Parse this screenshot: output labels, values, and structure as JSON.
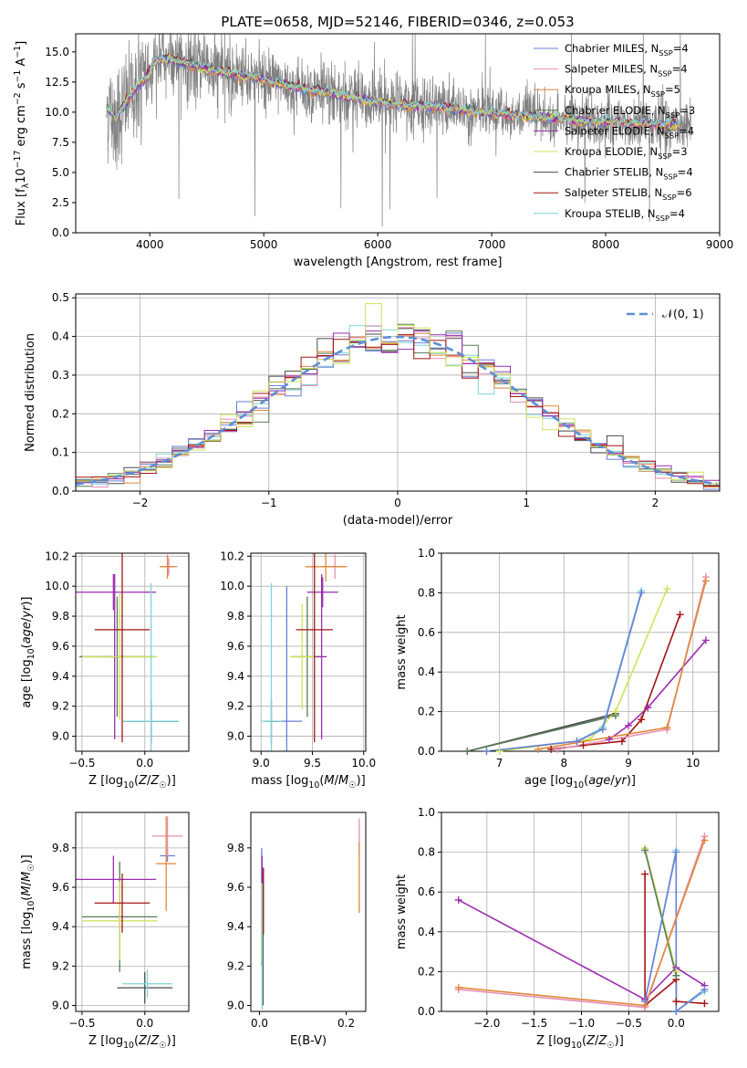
{
  "title": "PLATE=0658, MJD=52146, FIBERID=0346, z=0.053",
  "series_names": [
    "Chabrier MILES, N<sub>SSP</sub>=4",
    "Salpeter MILES, N<sub>SSP</sub>=4",
    "Kroupa MILES, N<sub>SSP</sub>=5",
    "Chabrier ELODIE, N<sub>SSP</sub>=3",
    "Salpeter ELODIE, N<sub>SSP</sub>=4",
    "Kroupa ELODIE, N<sub>SSP</sub>=3",
    "Chabrier STELIB, N<sub>SSP</sub>=4",
    "Salpeter STELIB, N<sub>SSP</sub>=6",
    "Kroupa STELIB, N<sub>SSP</sub>=4"
  ],
  "series_colors": [
    "#6b7fd6",
    "#e68fb8",
    "#e0883a",
    "#5a7a5a",
    "#9b2cb0",
    "#cde35a",
    "#4a4a4a",
    "#a41414",
    "#7fd4d8"
  ],
  "chart_data": [
    {
      "id": "spectrum",
      "type": "line",
      "xlabel": "wavelength [Angstrom, rest frame]",
      "ylabel": "Flux [f<sub>λ</sub>10<sup>−17</sup> erg cm<sup>−2</sup> s<sup>−1</sup> A<sup>−1</sup>]",
      "xlim": [
        3350,
        9000
      ],
      "ylim": [
        0,
        16.5
      ],
      "xticks": [
        4000,
        5000,
        6000,
        7000,
        8000,
        9000
      ],
      "yticks": [
        0.0,
        2.5,
        5.0,
        7.5,
        10.0,
        12.5,
        15.0
      ],
      "grid": false,
      "legend": "top-right",
      "data_range": [
        3620,
        8750
      ],
      "continuum": [
        [
          3620,
          10.5
        ],
        [
          3700,
          9.5
        ],
        [
          3800,
          11.0
        ],
        [
          3900,
          12.3
        ],
        [
          3950,
          12.5
        ],
        [
          4050,
          14.3
        ],
        [
          4150,
          14.5
        ],
        [
          4300,
          14.0
        ],
        [
          4500,
          13.6
        ],
        [
          4700,
          13.2
        ],
        [
          4900,
          12.9
        ],
        [
          5100,
          12.4
        ],
        [
          5300,
          12.0
        ],
        [
          5500,
          11.7
        ],
        [
          5700,
          11.3
        ],
        [
          5900,
          11.0
        ],
        [
          6100,
          10.7
        ],
        [
          6300,
          10.5
        ],
        [
          6500,
          10.4
        ],
        [
          6700,
          10.2
        ],
        [
          6900,
          10.0
        ],
        [
          7100,
          9.85
        ],
        [
          7300,
          9.7
        ],
        [
          7500,
          9.5
        ],
        [
          7700,
          9.3
        ],
        [
          7900,
          9.2
        ],
        [
          8100,
          9.1
        ],
        [
          8300,
          9.05
        ],
        [
          8500,
          9.0
        ],
        [
          8750,
          8.9
        ]
      ],
      "observed_noise_amplitude": 1.4
    },
    {
      "id": "residuals",
      "type": "histogram",
      "xlabel": "(data-model)/error",
      "ylabel": "Normed distribution",
      "xlim": [
        -2.5,
        2.5
      ],
      "ylim": [
        0,
        0.51
      ],
      "xticks": [
        -2,
        -1,
        0,
        1,
        2
      ],
      "yticks": [
        0.0,
        0.1,
        0.2,
        0.3,
        0.4,
        0.5
      ],
      "grid": true,
      "legend": "top-right",
      "reference_label": "𝒩(0, 1)",
      "bins": 40,
      "spike": {
        "bin_center": -0.16,
        "value": 0.485
      }
    },
    {
      "id": "age_vs_Z",
      "type": "errorbar",
      "xlabel": "Z [log<sub>10</sub>(<i>Z</i>/<i>Z</i><sub>☉</sub>)]",
      "ylabel": "age  [log<sub>10</sub>(<i>age</i>/<i>yr</i>)]",
      "xlim": [
        -0.55,
        0.35
      ],
      "ylim": [
        8.9,
        10.22
      ],
      "xticks": [
        -0.5,
        0.0
      ],
      "yticks": [
        9.0,
        9.2,
        9.4,
        9.6,
        9.8,
        10.0,
        10.2
      ],
      "grid": true,
      "points": [
        {
          "series": 0,
          "x": 0.05,
          "y": 9.1,
          "xerr": 0.22,
          "yerr": 0.15
        },
        {
          "series": 0,
          "x": 0.19,
          "y": 10.13,
          "xerr": 0.06,
          "yerr": 0.05
        },
        {
          "series": 1,
          "x": 0.19,
          "y": 10.13,
          "xerr": 0.07,
          "yerr": 0.06
        },
        {
          "series": 2,
          "x": 0.18,
          "y": 10.13,
          "xerr": 0.06,
          "yerr": 0.08
        },
        {
          "series": 3,
          "x": -0.22,
          "y": 9.53,
          "xerr": 0.3,
          "yerr": 0.4
        },
        {
          "series": 4,
          "x": -0.25,
          "y": 9.96,
          "xerr": 0.34,
          "yerr": 0.12
        },
        {
          "series": 4,
          "x": -0.24,
          "y": 9.53,
          "xerr": 0.1,
          "yerr": 0.55
        },
        {
          "series": 5,
          "x": -0.2,
          "y": 9.53,
          "xerr": 0.3,
          "yerr": 0.42
        },
        {
          "series": 6,
          "x": 0.05,
          "y": 9.1,
          "xerr": 0.22,
          "yerr": 0.14
        },
        {
          "series": 7,
          "x": -0.18,
          "y": 9.71,
          "xerr": 0.22,
          "yerr": 0.75
        },
        {
          "series": 8,
          "x": 0.05,
          "y": 9.1,
          "xerr": 0.22,
          "yerr": 0.92
        }
      ]
    },
    {
      "id": "age_vs_mass",
      "type": "errorbar",
      "xlabel": "mass [log<sub>10</sub>(<i>M</i>/<i>M</i><sub>☉</sub>)]",
      "ylabel": "",
      "xlim": [
        8.9,
        10.02
      ],
      "ylim": [
        8.9,
        10.22
      ],
      "xticks": [
        9.0,
        9.5,
        10.0
      ],
      "yticks": [
        9.0,
        9.2,
        9.4,
        9.6,
        9.8,
        10.0,
        10.2
      ],
      "grid": true,
      "points": [
        {
          "series": 0,
          "x": 9.25,
          "y": 9.1,
          "xerr": 0.15,
          "yerr": 0.9
        },
        {
          "series": 1,
          "x": 9.72,
          "y": 10.13,
          "xerr": 0.12,
          "yerr": 0.08
        },
        {
          "series": 2,
          "x": 9.63,
          "y": 10.13,
          "xerr": 0.2,
          "yerr": 0.1
        },
        {
          "series": 3,
          "x": 9.45,
          "y": 9.53,
          "xerr": 0.15,
          "yerr": 0.4
        },
        {
          "series": 4,
          "x": 9.6,
          "y": 9.96,
          "xerr": 0.15,
          "yerr": 0.1
        },
        {
          "series": 4,
          "x": 9.59,
          "y": 9.53,
          "xerr": 0.05,
          "yerr": 0.55
        },
        {
          "series": 5,
          "x": 9.4,
          "y": 9.53,
          "xerr": 0.12,
          "yerr": 0.35
        },
        {
          "series": 6,
          "x": 9.1,
          "y": 9.1,
          "xerr": 0.07,
          "yerr": 0.14
        },
        {
          "series": 7,
          "x": 9.52,
          "y": 9.71,
          "xerr": 0.18,
          "yerr": 0.75
        },
        {
          "series": 8,
          "x": 9.1,
          "y": 9.1,
          "xerr": 0.1,
          "yerr": 0.92
        }
      ]
    },
    {
      "id": "weight_vs_age",
      "type": "line",
      "xlabel": "age  [log<sub>10</sub>(<i>age</i>/<i>yr</i>)]",
      "ylabel": "mass weight",
      "xlim": [
        6.1,
        10.4
      ],
      "ylim": [
        0,
        1.0
      ],
      "xticks": [
        7,
        8,
        9,
        10
      ],
      "yticks": [
        0.0,
        0.2,
        0.4,
        0.6,
        0.8,
        1.0
      ],
      "grid": true,
      "series": [
        {
          "series": 6,
          "x": [
            6.5,
            8.8
          ],
          "y": [
            0.0,
            0.19
          ]
        },
        {
          "series": 3,
          "x": [
            6.5,
            8.8
          ],
          "y": [
            0.0,
            0.18
          ]
        },
        {
          "series": 5,
          "x": [
            7.0,
            8.4,
            8.8,
            9.6
          ],
          "y": [
            0.0,
            0.06,
            0.2,
            0.82
          ]
        },
        {
          "series": 8,
          "x": [
            6.8,
            8.2,
            8.6,
            9.2
          ],
          "y": [
            0.0,
            0.05,
            0.12,
            0.81
          ]
        },
        {
          "series": 0,
          "x": [
            6.8,
            8.2,
            8.6,
            9.2
          ],
          "y": [
            0.0,
            0.05,
            0.11,
            0.8
          ]
        },
        {
          "series": 4,
          "x": [
            8.7,
            9.0,
            9.3,
            10.2
          ],
          "y": [
            0.06,
            0.13,
            0.22,
            0.56
          ]
        },
        {
          "series": 7,
          "x": [
            7.8,
            8.3,
            8.9,
            9.2,
            9.8
          ],
          "y": [
            0.01,
            0.03,
            0.05,
            0.16,
            0.69
          ]
        },
        {
          "series": 1,
          "x": [
            7.9,
            9.6,
            10.2
          ],
          "y": [
            0.01,
            0.11,
            0.88
          ]
        },
        {
          "series": 2,
          "x": [
            7.6,
            9.6,
            10.2
          ],
          "y": [
            0.01,
            0.12,
            0.86
          ]
        }
      ]
    },
    {
      "id": "mass_vs_Z",
      "type": "errorbar",
      "xlabel": "Z [log<sub>10</sub>(<i>Z</i>/<i>Z</i><sub>☉</sub>)]",
      "ylabel": "mass [log<sub>10</sub>(<i>M</i>/<i>M</i><sub>☉</sub>)]",
      "xlim": [
        -0.55,
        0.35
      ],
      "ylim": [
        8.97,
        9.98
      ],
      "xticks": [
        -0.5,
        0.0
      ],
      "yticks": [
        9.0,
        9.2,
        9.4,
        9.6,
        9.8
      ],
      "grid": true,
      "points": [
        {
          "series": 0,
          "x": 0.18,
          "y": 9.76,
          "xerr": 0.06,
          "yerr": 0.03
        },
        {
          "series": 1,
          "x": 0.18,
          "y": 9.86,
          "xerr": 0.12,
          "yerr": 0.1
        },
        {
          "series": 2,
          "x": 0.17,
          "y": 9.72,
          "xerr": 0.08,
          "yerr": 0.24
        },
        {
          "series": 3,
          "x": -0.2,
          "y": 9.45,
          "xerr": 0.3,
          "yerr": 0.28
        },
        {
          "series": 4,
          "x": -0.25,
          "y": 9.64,
          "xerr": 0.34,
          "yerr": 0.12
        },
        {
          "series": 5,
          "x": -0.2,
          "y": 9.43,
          "xerr": 0.3,
          "yerr": 0.2
        },
        {
          "series": 6,
          "x": 0.0,
          "y": 9.09,
          "xerr": 0.22,
          "yerr": 0.08
        },
        {
          "series": 7,
          "x": -0.18,
          "y": 9.52,
          "xerr": 0.22,
          "yerr": 0.15
        },
        {
          "series": 8,
          "x": 0.02,
          "y": 9.11,
          "xerr": 0.2,
          "yerr": 0.07
        }
      ]
    },
    {
      "id": "mass_vs_EBV",
      "type": "errorbar",
      "xlabel": "E(B-V)",
      "ylabel": "",
      "xlim": [
        -0.02,
        0.245
      ],
      "ylim": [
        8.97,
        9.98
      ],
      "xticks": [
        0.0,
        0.2
      ],
      "yticks": [
        9.0,
        9.2,
        9.4,
        9.6,
        9.8
      ],
      "grid": false,
      "points": [
        {
          "series": 0,
          "x": 0.005,
          "y": 9.5,
          "xerr": 0.0,
          "yerr": 0.3
        },
        {
          "series": 1,
          "x": 0.23,
          "y": 9.86,
          "xerr": 0.0,
          "yerr": 0.09
        },
        {
          "series": 2,
          "x": 0.23,
          "y": 9.65,
          "xerr": 0.0,
          "yerr": 0.18
        },
        {
          "series": 3,
          "x": 0.007,
          "y": 9.44,
          "xerr": 0.0,
          "yerr": 0.25
        },
        {
          "series": 4,
          "x": 0.006,
          "y": 9.62,
          "xerr": 0.0,
          "yerr": 0.14
        },
        {
          "series": 5,
          "x": 0.005,
          "y": 9.42,
          "xerr": 0.0,
          "yerr": 0.2
        },
        {
          "series": 6,
          "x": 0.008,
          "y": 9.2,
          "xerr": 0.0,
          "yerr": 0.2
        },
        {
          "series": 7,
          "x": 0.009,
          "y": 9.53,
          "xerr": 0.0,
          "yerr": 0.17
        },
        {
          "series": 8,
          "x": 0.006,
          "y": 9.3,
          "xerr": 0.0,
          "yerr": 0.32
        }
      ]
    },
    {
      "id": "weight_vs_Z",
      "type": "line",
      "xlabel": "Z [log<sub>10</sub>(<i>Z</i>/<i>Z</i><sub>☉</sub>)]",
      "ylabel": "mass weight",
      "xlim": [
        -2.48,
        0.45
      ],
      "ylim": [
        0,
        1.0
      ],
      "xticks": [
        -2.0,
        -1.5,
        -1.0,
        -0.5,
        0.0
      ],
      "yticks": [
        0.0,
        0.2,
        0.4,
        0.6,
        0.8,
        1.0
      ],
      "grid": true,
      "series": [
        {
          "series": 4,
          "x": [
            -2.3,
            -0.33,
            0.0,
            0.3
          ],
          "y": [
            0.56,
            0.06,
            0.22,
            0.13
          ]
        },
        {
          "series": 7,
          "x": [
            -0.33,
            -0.33,
            0.0,
            0.0,
            0.3
          ],
          "y": [
            0.69,
            0.03,
            0.16,
            0.05,
            0.04
          ]
        },
        {
          "series": 5,
          "x": [
            -0.33,
            0.0,
            0.0
          ],
          "y": [
            0.82,
            0.2,
            0.0
          ]
        },
        {
          "series": 3,
          "x": [
            -0.33,
            0.0,
            0.0
          ],
          "y": [
            0.81,
            0.18,
            0.0
          ]
        },
        {
          "series": 8,
          "x": [
            -0.33,
            0.0,
            0.0,
            0.3
          ],
          "y": [
            0.05,
            0.81,
            0.0,
            0.1
          ]
        },
        {
          "series": 0,
          "x": [
            -0.33,
            0.0,
            0.0,
            0.3
          ],
          "y": [
            0.05,
            0.8,
            0.0,
            0.11
          ]
        },
        {
          "series": 1,
          "x": [
            -2.3,
            -0.33,
            0.3
          ],
          "y": [
            0.11,
            0.02,
            0.88
          ]
        },
        {
          "series": 2,
          "x": [
            -2.3,
            -0.33,
            0.3
          ],
          "y": [
            0.12,
            0.03,
            0.86
          ]
        }
      ]
    }
  ]
}
